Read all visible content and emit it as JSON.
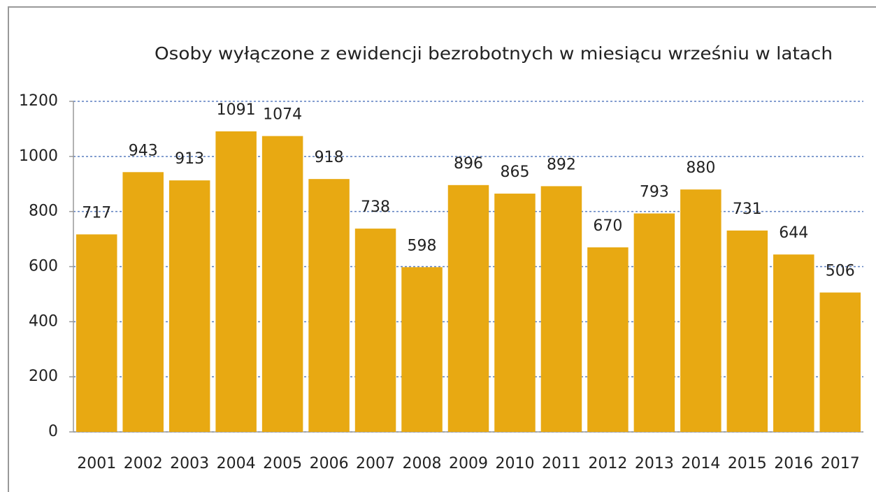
{
  "chart_data": {
    "type": "bar",
    "title": "Osoby wyłączone z ewidencji bezrobotnych w miesiącu wrześniu w latach",
    "categories": [
      "2001",
      "2002",
      "2003",
      "2004",
      "2005",
      "2006",
      "2007",
      "2008",
      "2009",
      "2010",
      "2011",
      "2012",
      "2013",
      "2014",
      "2015",
      "2016",
      "2017"
    ],
    "values": [
      717,
      943,
      913,
      1091,
      1074,
      918,
      738,
      598,
      896,
      865,
      892,
      670,
      793,
      880,
      731,
      644,
      506
    ],
    "color": "#e8a912",
    "ylim": [
      0,
      1200
    ],
    "yticks": [
      0,
      200,
      400,
      600,
      800,
      1000,
      1200
    ],
    "grid": true
  }
}
